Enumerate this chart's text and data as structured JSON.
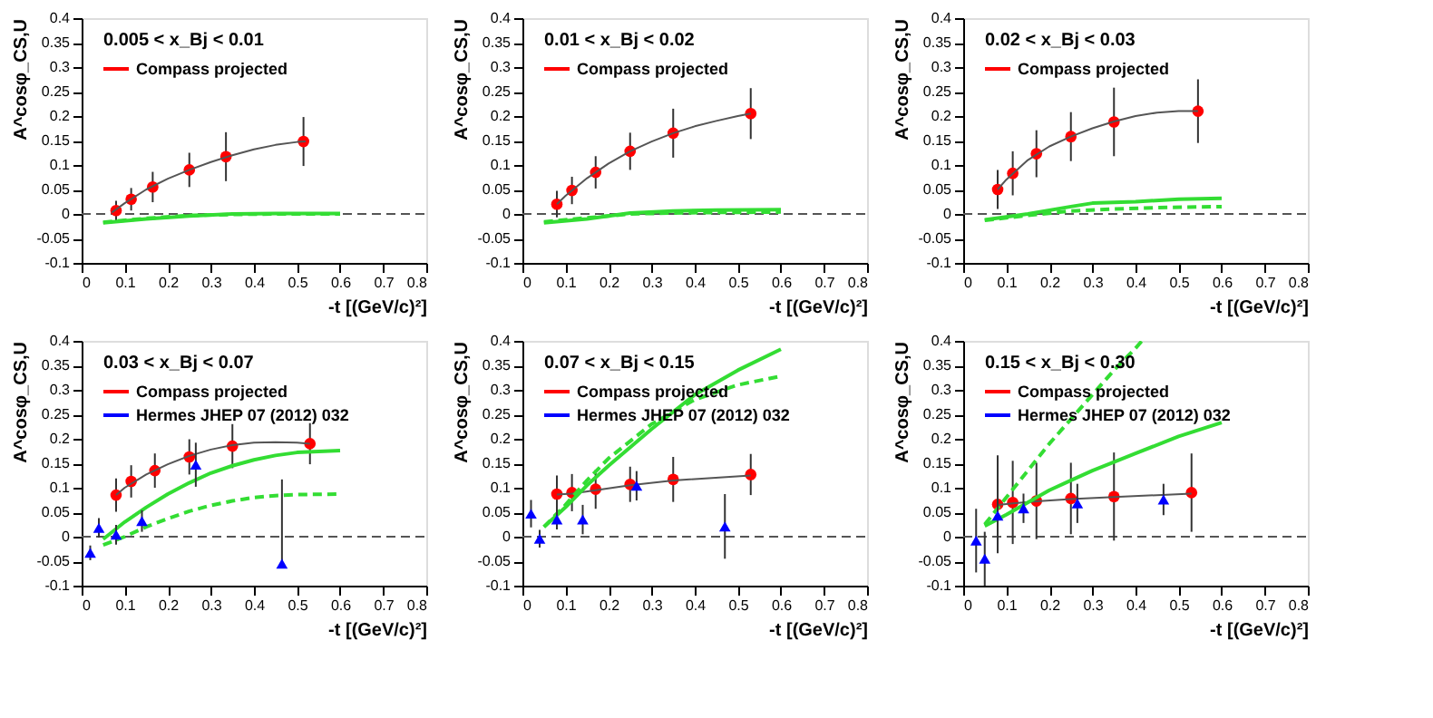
{
  "chart_data": [
    {
      "type": "scatter",
      "title": "0.005 < x_Bj < 0.01",
      "xlabel": "-t [(GeV/c)²]",
      "ylabel": "A^cosφ_CS,U",
      "xlim": [
        0,
        0.8
      ],
      "ylim": [
        -0.1,
        0.4
      ],
      "xticks": [
        0,
        0.1,
        0.2,
        0.3,
        0.4,
        0.5,
        0.6,
        0.7,
        0.8
      ],
      "yticks": [
        -0.1,
        -0.05,
        0,
        0.05,
        0.1,
        0.15,
        0.2,
        0.25,
        0.3,
        0.35,
        0.4
      ],
      "legend": "top left",
      "ref_lines": [
        {
          "axis": "y",
          "value": 0,
          "line_style": "dashed",
          "color": "#555555"
        }
      ],
      "series": [
        {
          "name": "Compass projected",
          "type": "scatter",
          "marker": "circle",
          "color": "#ff0000",
          "x": [
            0.08,
            0.115,
            0.165,
            0.25,
            0.335,
            0.515
          ],
          "values": [
            0.007,
            0.03,
            0.055,
            0.09,
            0.117,
            0.148
          ],
          "errors": [
            0.02,
            0.023,
            0.031,
            0.035,
            0.05,
            0.05
          ]
        },
        {
          "type": "line",
          "color": "#555555",
          "line_style": "solid",
          "x": [
            0.07,
            0.1,
            0.15,
            0.2,
            0.25,
            0.3,
            0.35,
            0.4,
            0.45,
            0.5,
            0.52
          ],
          "values": [
            0.003,
            0.022,
            0.05,
            0.072,
            0.09,
            0.106,
            0.12,
            0.132,
            0.141,
            0.147,
            0.148
          ]
        },
        {
          "type": "line",
          "color": "#33dd33",
          "line_style": "solid",
          "x": [
            0.05,
            0.15,
            0.25,
            0.35,
            0.45,
            0.6
          ],
          "values": [
            -0.018,
            -0.01,
            -0.004,
            0,
            0.001,
            0.001
          ]
        },
        {
          "type": "line",
          "color": "#33dd33",
          "line_style": "dashed",
          "x": [
            0.05,
            0.15,
            0.25,
            0.35,
            0.45,
            0.6
          ],
          "values": [
            -0.017,
            -0.009,
            -0.003,
            -0.001,
            0,
            0
          ]
        }
      ]
    },
    {
      "type": "scatter",
      "title": "0.01 < x_Bj < 0.02",
      "xlabel": "-t [(GeV/c)²]",
      "ylabel": "A^cosφ_CS,U",
      "xlim": [
        0,
        0.8
      ],
      "ylim": [
        -0.1,
        0.4
      ],
      "xticks": [
        0,
        0.1,
        0.2,
        0.3,
        0.4,
        0.5,
        0.6,
        0.7,
        0.8
      ],
      "yticks": [
        -0.1,
        -0.05,
        0,
        0.05,
        0.1,
        0.15,
        0.2,
        0.25,
        0.3,
        0.35,
        0.4
      ],
      "legend": "top left",
      "ref_lines": [
        {
          "axis": "y",
          "value": 0,
          "line_style": "dashed",
          "color": "#555555"
        }
      ],
      "series": [
        {
          "name": "Compass projected",
          "type": "scatter",
          "marker": "circle",
          "color": "#ff0000",
          "x": [
            0.08,
            0.115,
            0.17,
            0.25,
            0.35,
            0.53
          ],
          "values": [
            0.02,
            0.048,
            0.085,
            0.128,
            0.165,
            0.205
          ],
          "errors": [
            0.027,
            0.028,
            0.033,
            0.038,
            0.05,
            0.052
          ]
        },
        {
          "type": "line",
          "color": "#555555",
          "line_style": "solid",
          "x": [
            0.08,
            0.1,
            0.15,
            0.2,
            0.25,
            0.3,
            0.35,
            0.4,
            0.45,
            0.5,
            0.53
          ],
          "values": [
            0.02,
            0.037,
            0.073,
            0.103,
            0.128,
            0.148,
            0.165,
            0.179,
            0.19,
            0.2,
            0.205
          ]
        },
        {
          "type": "line",
          "color": "#33dd33",
          "line_style": "solid",
          "x": [
            0.05,
            0.15,
            0.25,
            0.35,
            0.45,
            0.6
          ],
          "values": [
            -0.018,
            -0.01,
            0.002,
            0.006,
            0.008,
            0.009
          ]
        },
        {
          "type": "line",
          "color": "#33dd33",
          "line_style": "dashed",
          "x": [
            0.05,
            0.15,
            0.25,
            0.35,
            0.45,
            0.6
          ],
          "values": [
            -0.016,
            -0.008,
            0,
            0.002,
            0.003,
            0.004
          ]
        }
      ]
    },
    {
      "type": "scatter",
      "title": "0.02 < x_Bj < 0.03",
      "xlabel": "-t [(GeV/c)²]",
      "ylabel": "A^cosφ_CS,U",
      "xlim": [
        0,
        0.8
      ],
      "ylim": [
        -0.1,
        0.4
      ],
      "xticks": [
        0,
        0.1,
        0.2,
        0.3,
        0.4,
        0.5,
        0.6,
        0.7,
        0.8
      ],
      "yticks": [
        -0.1,
        -0.05,
        0,
        0.05,
        0.1,
        0.15,
        0.2,
        0.25,
        0.3,
        0.35,
        0.4
      ],
      "legend": "top left",
      "ref_lines": [
        {
          "axis": "y",
          "value": 0,
          "line_style": "dashed",
          "color": "#555555"
        }
      ],
      "series": [
        {
          "name": "Compass projected",
          "type": "scatter",
          "marker": "circle",
          "color": "#ff0000",
          "x": [
            0.08,
            0.115,
            0.17,
            0.25,
            0.35,
            0.545
          ],
          "values": [
            0.05,
            0.083,
            0.123,
            0.158,
            0.188,
            0.21
          ],
          "errors": [
            0.04,
            0.045,
            0.048,
            0.05,
            0.07,
            0.065
          ]
        },
        {
          "type": "line",
          "color": "#555555",
          "line_style": "solid",
          "x": [
            0.08,
            0.1,
            0.15,
            0.2,
            0.25,
            0.3,
            0.35,
            0.4,
            0.45,
            0.5,
            0.545
          ],
          "values": [
            0.05,
            0.07,
            0.11,
            0.138,
            0.158,
            0.175,
            0.189,
            0.2,
            0.207,
            0.21,
            0.21
          ]
        },
        {
          "type": "line",
          "color": "#33dd33",
          "line_style": "solid",
          "x": [
            0.05,
            0.15,
            0.25,
            0.3,
            0.4,
            0.5,
            0.6
          ],
          "values": [
            -0.012,
            0,
            0.015,
            0.022,
            0.025,
            0.03,
            0.032
          ]
        },
        {
          "type": "line",
          "color": "#33dd33",
          "line_style": "dashed",
          "x": [
            0.05,
            0.15,
            0.25,
            0.35,
            0.45,
            0.6
          ],
          "values": [
            -0.013,
            -0.003,
            0.006,
            0.01,
            0.013,
            0.015
          ]
        }
      ]
    },
    {
      "type": "scatter",
      "title": "0.03 < x_Bj < 0.07",
      "xlabel": "-t [(GeV/c)²]",
      "ylabel": "A^cosφ_CS,U",
      "xlim": [
        0,
        0.8
      ],
      "ylim": [
        -0.1,
        0.4
      ],
      "xticks": [
        0,
        0.1,
        0.2,
        0.3,
        0.4,
        0.5,
        0.6,
        0.7,
        0.8
      ],
      "yticks": [
        -0.1,
        -0.05,
        0,
        0.05,
        0.1,
        0.15,
        0.2,
        0.25,
        0.3,
        0.35,
        0.4
      ],
      "legend": "top left",
      "ref_lines": [
        {
          "axis": "y",
          "value": 0,
          "line_style": "dashed",
          "color": "#555555"
        }
      ],
      "series": [
        {
          "name": "Compass projected",
          "type": "scatter",
          "marker": "circle",
          "color": "#ff0000",
          "x": [
            0.08,
            0.115,
            0.17,
            0.25,
            0.35,
            0.53
          ],
          "values": [
            0.085,
            0.113,
            0.135,
            0.163,
            0.185,
            0.19
          ],
          "errors": [
            0.034,
            0.033,
            0.035,
            0.036,
            0.045,
            0.042
          ]
        },
        {
          "type": "line",
          "color": "#555555",
          "line_style": "solid",
          "x": [
            0.08,
            0.1,
            0.15,
            0.2,
            0.25,
            0.3,
            0.35,
            0.4,
            0.45,
            0.5,
            0.53
          ],
          "values": [
            0.085,
            0.1,
            0.127,
            0.148,
            0.165,
            0.178,
            0.187,
            0.192,
            0.193,
            0.192,
            0.19
          ]
        },
        {
          "type": "line",
          "color": "#33dd33",
          "line_style": "solid",
          "x": [
            0.05,
            0.1,
            0.15,
            0.2,
            0.25,
            0.3,
            0.35,
            0.4,
            0.45,
            0.5,
            0.6
          ],
          "values": [
            -0.005,
            0.03,
            0.06,
            0.087,
            0.11,
            0.13,
            0.145,
            0.157,
            0.166,
            0.172,
            0.176
          ]
        },
        {
          "type": "line",
          "color": "#33dd33",
          "line_style": "dashed",
          "x": [
            0.05,
            0.1,
            0.15,
            0.2,
            0.25,
            0.3,
            0.35,
            0.4,
            0.45,
            0.5,
            0.6
          ],
          "values": [
            -0.017,
            0,
            0.02,
            0.037,
            0.052,
            0.064,
            0.073,
            0.08,
            0.084,
            0.086,
            0.087
          ]
        },
        {
          "name": "Hermes JHEP 07 (2012) 032",
          "type": "scatter",
          "marker": "triangle",
          "color": "#0000ff",
          "x": [
            0.02,
            0.04,
            0.08,
            0.14,
            0.265,
            0.465
          ],
          "values": [
            -0.033,
            0.018,
            0.004,
            0.032,
            0.147,
            -0.055
          ],
          "errors": [
            0.015,
            0.02,
            0.02,
            0.022,
            0.045,
            [
              -0.06,
              0.117
            ]
          ]
        }
      ]
    },
    {
      "type": "scatter",
      "title": "0.07 < x_Bj < 0.15",
      "xlabel": "-t [(GeV/c)²]",
      "ylabel": "A^cosφ_CS,U",
      "xlim": [
        0,
        0.8
      ],
      "ylim": [
        -0.1,
        0.4
      ],
      "xticks": [
        0,
        0.1,
        0.2,
        0.3,
        0.4,
        0.5,
        0.6,
        0.7,
        0.8
      ],
      "yticks": [
        -0.1,
        -0.05,
        0,
        0.05,
        0.1,
        0.15,
        0.2,
        0.25,
        0.3,
        0.35,
        0.4
      ],
      "legend": "top left",
      "ref_lines": [
        {
          "axis": "y",
          "value": 0,
          "line_style": "dashed",
          "color": "#555555"
        }
      ],
      "series": [
        {
          "name": "Compass projected",
          "type": "scatter",
          "marker": "circle",
          "color": "#ff0000",
          "x": [
            0.08,
            0.115,
            0.17,
            0.25,
            0.35,
            0.53
          ],
          "values": [
            0.087,
            0.09,
            0.097,
            0.107,
            0.117,
            0.127
          ],
          "errors": [
            0.038,
            0.038,
            0.04,
            0.036,
            0.046,
            0.042
          ]
        },
        {
          "type": "line",
          "color": "#555555",
          "line_style": "solid",
          "x": [
            0.08,
            0.115,
            0.17,
            0.25,
            0.35,
            0.53
          ],
          "values": [
            0.086,
            0.088,
            0.095,
            0.105,
            0.115,
            0.125
          ]
        },
        {
          "type": "line",
          "color": "#33dd33",
          "line_style": "solid",
          "x": [
            0.05,
            0.1,
            0.15,
            0.2,
            0.3,
            0.4,
            0.5,
            0.6
          ],
          "values": [
            0.02,
            0.06,
            0.105,
            0.145,
            0.22,
            0.29,
            0.34,
            0.383
          ]
        },
        {
          "type": "line",
          "color": "#33dd33",
          "line_style": "dashed",
          "x": [
            0.05,
            0.1,
            0.15,
            0.2,
            0.3,
            0.4,
            0.5,
            0.6
          ],
          "values": [
            0.02,
            0.065,
            0.115,
            0.16,
            0.23,
            0.28,
            0.31,
            0.328
          ]
        },
        {
          "name": "Hermes JHEP 07 (2012) 032",
          "type": "scatter",
          "marker": "triangle",
          "color": "#0000ff",
          "x": [
            0.02,
            0.04,
            0.08,
            0.14,
            0.265,
            0.47
          ],
          "values": [
            0.047,
            -0.004,
            0.035,
            0.035,
            0.104,
            0.021
          ],
          "errors": [
            0.028,
            0.018,
            0.02,
            0.03,
            0.03,
            0.066
          ]
        }
      ]
    },
    {
      "type": "scatter",
      "title": "0.15 < x_Bj < 0.30",
      "xlabel": "-t [(GeV/c)²]",
      "ylabel": "A^cosφ_CS,U",
      "xlim": [
        0,
        0.8
      ],
      "ylim": [
        -0.1,
        0.4
      ],
      "xticks": [
        0,
        0.1,
        0.2,
        0.3,
        0.4,
        0.5,
        0.6,
        0.7,
        0.8
      ],
      "yticks": [
        -0.1,
        -0.05,
        0,
        0.05,
        0.1,
        0.15,
        0.2,
        0.25,
        0.3,
        0.35,
        0.4
      ],
      "legend": "top left",
      "ref_lines": [
        {
          "axis": "y",
          "value": 0,
          "line_style": "dashed",
          "color": "#555555"
        }
      ],
      "series": [
        {
          "name": "Compass projected",
          "type": "scatter",
          "marker": "circle",
          "color": "#ff0000",
          "x": [
            0.08,
            0.115,
            0.17,
            0.25,
            0.35,
            0.53
          ],
          "values": [
            0.066,
            0.07,
            0.073,
            0.078,
            0.082,
            0.09
          ],
          "errors": [
            0.1,
            0.085,
            0.078,
            0.073,
            0.09,
            0.08
          ]
        },
        {
          "type": "line",
          "color": "#555555",
          "line_style": "solid",
          "x": [
            0.08,
            0.115,
            0.17,
            0.25,
            0.35,
            0.53
          ],
          "values": [
            0.065,
            0.068,
            0.072,
            0.077,
            0.081,
            0.088
          ]
        },
        {
          "type": "line",
          "color": "#33dd33",
          "line_style": "solid",
          "x": [
            0.05,
            0.1,
            0.15,
            0.2,
            0.25,
            0.3,
            0.4,
            0.5,
            0.6
          ],
          "values": [
            0.022,
            0.045,
            0.07,
            0.095,
            0.115,
            0.135,
            0.17,
            0.205,
            0.233
          ]
        },
        {
          "type": "line",
          "color": "#33dd33",
          "line_style": "dashed",
          "x": [
            0.05,
            0.1,
            0.15,
            0.2,
            0.25,
            0.3,
            0.35,
            0.4,
            0.415
          ],
          "values": [
            0.025,
            0.08,
            0.135,
            0.19,
            0.24,
            0.29,
            0.34,
            0.385,
            0.4
          ]
        },
        {
          "name": "Hermes JHEP 07 (2012) 032",
          "type": "scatter",
          "marker": "triangle",
          "color": "#0000ff",
          "x": [
            0.03,
            0.05,
            0.08,
            0.14,
            0.265,
            0.465
          ],
          "values": [
            -0.008,
            -0.045,
            0.043,
            0.058,
            0.068,
            0.076
          ],
          "errors": [
            0.065,
            0.055,
            0.075,
            0.03,
            0.04,
            0.032
          ]
        }
      ]
    }
  ]
}
